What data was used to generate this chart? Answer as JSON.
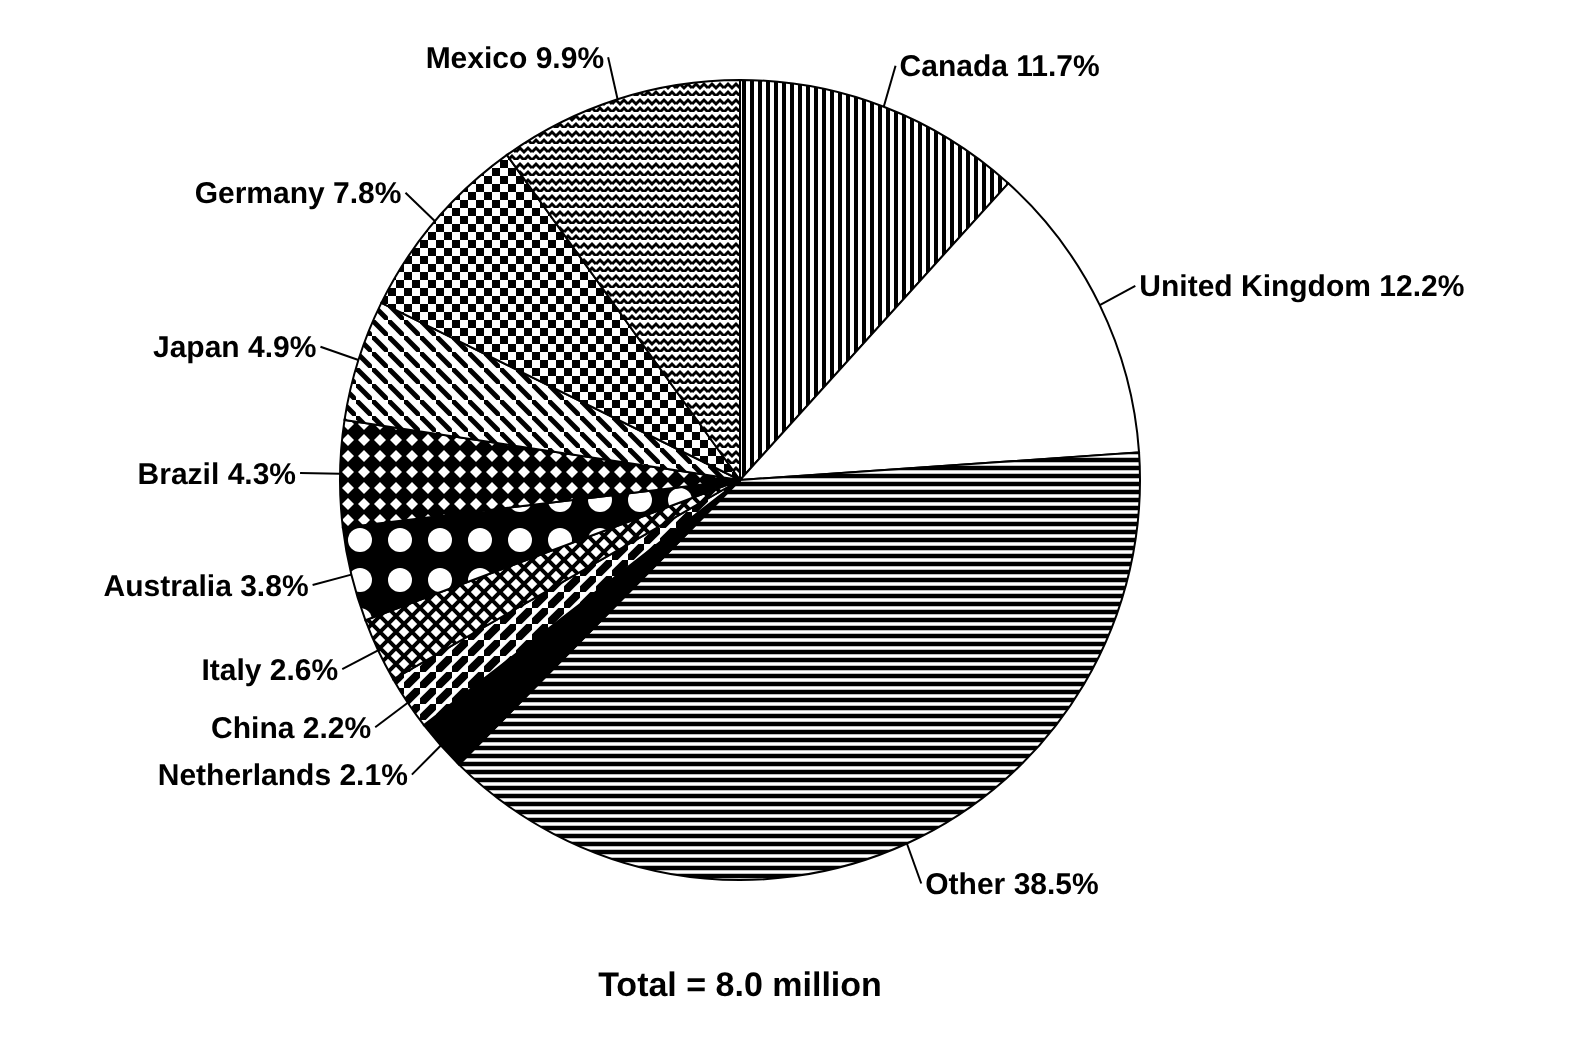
{
  "chart_data": {
    "type": "pie",
    "categories": [
      "Canada",
      "United Kingdom",
      "Other",
      "Netherlands",
      "China",
      "Italy",
      "Australia",
      "Brazil",
      "Japan",
      "Germany",
      "Mexico"
    ],
    "values": [
      11.7,
      12.2,
      38.5,
      2.1,
      2.2,
      2.6,
      3.8,
      4.3,
      4.9,
      7.8,
      9.9
    ],
    "colors": [
      "#000000",
      "#ffffff",
      "#000000",
      "#000000",
      "#000000",
      "#000000",
      "#000000",
      "#000000",
      "#000000",
      "#000000",
      "#000000"
    ],
    "value_labels": [
      "11.7%",
      "12.2%",
      "38.5%",
      "2.1%",
      "2.2%",
      "2.6%",
      "3.8%",
      "4.3%",
      "4.9%",
      "7.8%",
      "9.9%"
    ],
    "annotations": [
      "Total = 8.0 million"
    ]
  }
}
